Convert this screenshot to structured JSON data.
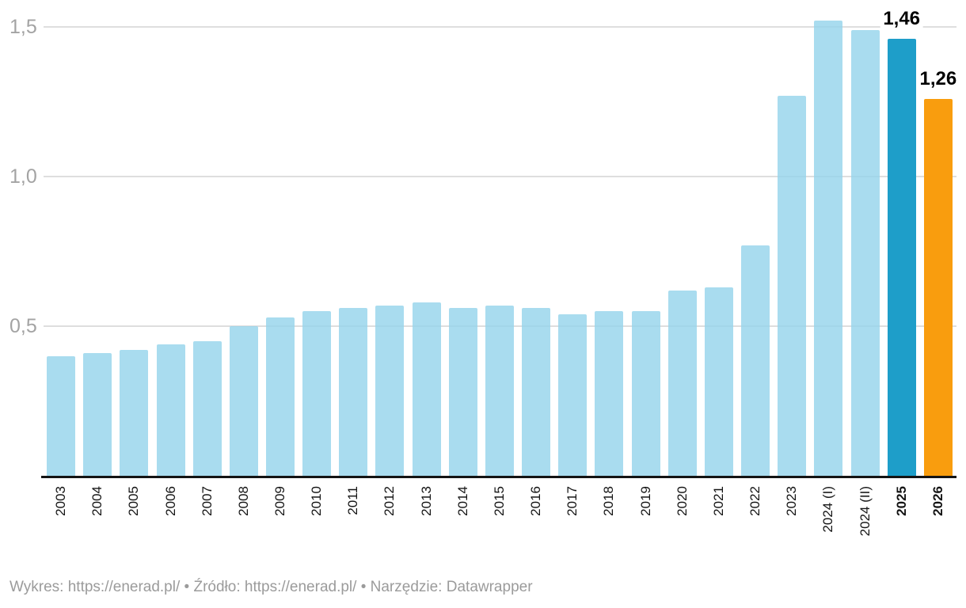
{
  "chart_data": {
    "type": "bar",
    "title": "",
    "xlabel": "",
    "ylabel": "",
    "grid": "horizontal",
    "ylim": [
      0,
      1.59
    ],
    "x_tick_rotation_deg": -90,
    "categories": [
      "2003",
      "2004",
      "2005",
      "2006",
      "2007",
      "2008",
      "2009",
      "2010",
      "2011",
      "2012",
      "2013",
      "2014",
      "2015",
      "2016",
      "2017",
      "2018",
      "2019",
      "2020",
      "2021",
      "2022",
      "2023",
      "2024 (I)",
      "2024 (II)",
      "2025",
      "2026"
    ],
    "values": [
      0.4,
      0.41,
      0.42,
      0.44,
      0.45,
      0.5,
      0.53,
      0.55,
      0.56,
      0.57,
      0.58,
      0.56,
      0.57,
      0.56,
      0.54,
      0.55,
      0.55,
      0.62,
      0.63,
      0.77,
      1.27,
      1.52,
      1.49,
      1.46,
      1.26
    ],
    "data_labels": {
      "2025": "1,46",
      "2026": "1,26"
    },
    "emphasized_categories": [
      "2025",
      "2026"
    ],
    "colors": {
      "default": "#abdcee",
      "2025": "#1e9ec9",
      "2026": "#f99d0e"
    },
    "yticks": [
      {
        "value": 0.5,
        "label": "0,5"
      },
      {
        "value": 1.0,
        "label": "1,0"
      },
      {
        "value": 1.5,
        "label": "1,5"
      }
    ],
    "legend": "none"
  },
  "footer": {
    "parts": [
      {
        "text": "Wykres: ",
        "link": false
      },
      {
        "text": "https://enerad.pl/",
        "link": true
      },
      {
        "text": " • Źródło: ",
        "link": false
      },
      {
        "text": "https://enerad.pl/",
        "link": true
      },
      {
        "text": " • Narzędzie: ",
        "link": false
      },
      {
        "text": "Datawrapper",
        "link": true
      }
    ]
  }
}
